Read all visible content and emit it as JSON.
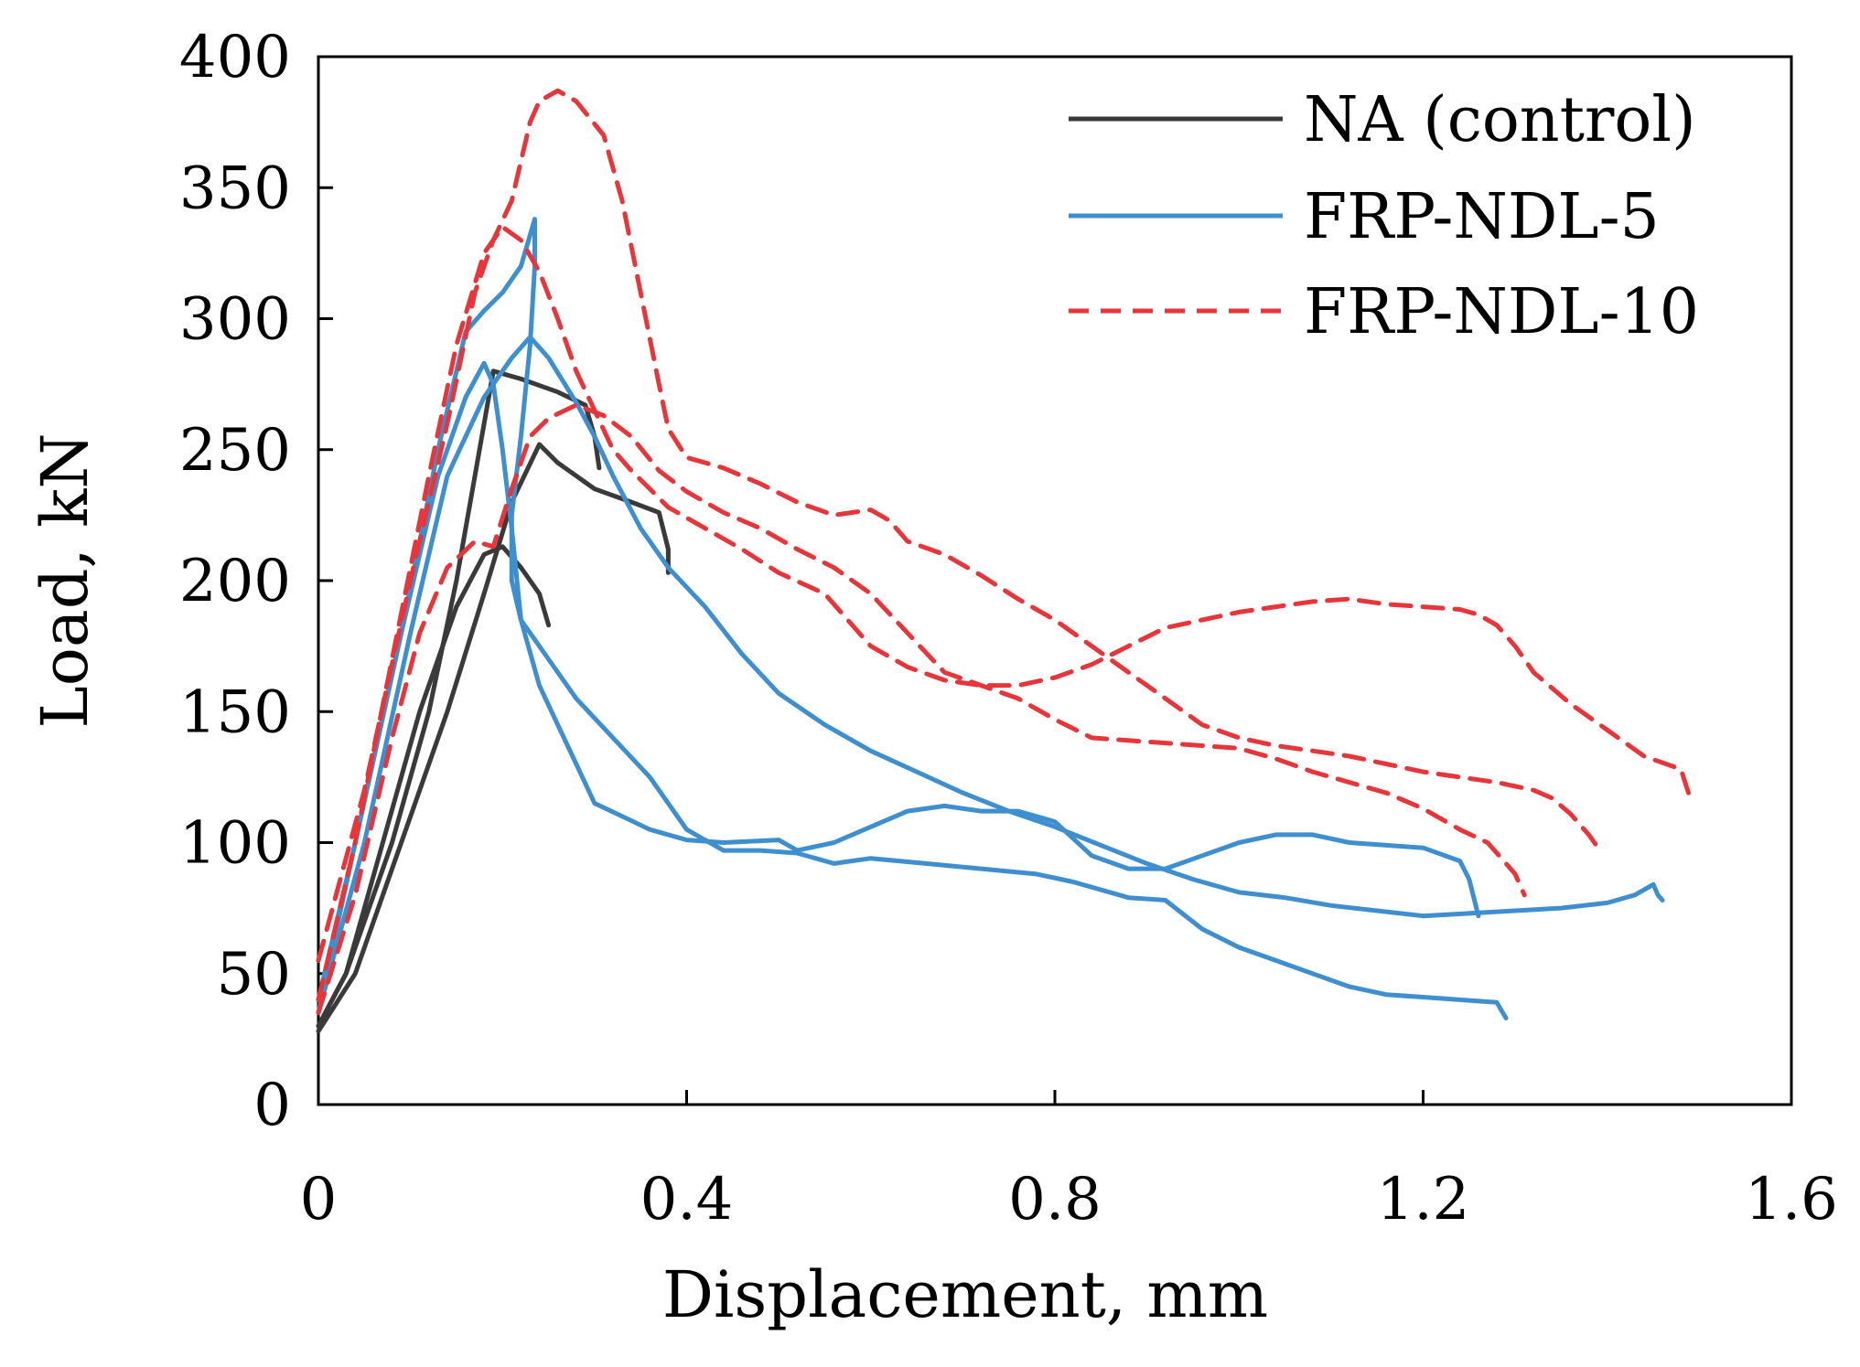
{
  "chart_data": {
    "type": "line",
    "title": "",
    "xlabel": "Displacement, mm",
    "ylabel": "Load, kN",
    "xlim": [
      0,
      1.6
    ],
    "ylim": [
      0,
      400
    ],
    "xticks": [
      0,
      0.4,
      0.8,
      1.2,
      1.6
    ],
    "xtick_labels": [
      "0",
      "0.4",
      "0.8",
      "1.2",
      "1.6"
    ],
    "yticks": [
      0,
      50,
      100,
      150,
      200,
      250,
      300,
      350,
      400
    ],
    "ytick_labels": [
      "0",
      "50",
      "100",
      "150",
      "200",
      "250",
      "300",
      "350",
      "400"
    ],
    "grid": false,
    "legend_position": "top-right",
    "legend": [
      {
        "name": "NA (control)",
        "color": "#3a3a3a",
        "dash": "solid"
      },
      {
        "name": "FRP-NDL-5",
        "color": "#3e8fd0",
        "dash": "solid"
      },
      {
        "name": "FRP-NDL-10",
        "color": "#e8353a",
        "dash": "dashed"
      }
    ],
    "series": [
      {
        "name": "NA (control)",
        "group": 0,
        "points": [
          [
            0,
            30
          ],
          [
            0.03,
            50
          ],
          [
            0.08,
            100
          ],
          [
            0.12,
            150
          ],
          [
            0.15,
            200
          ],
          [
            0.17,
            240
          ],
          [
            0.19,
            280
          ],
          [
            0.22,
            277
          ],
          [
            0.26,
            272
          ],
          [
            0.29,
            267
          ],
          [
            0.3,
            255
          ],
          [
            0.305,
            243
          ]
        ]
      },
      {
        "name": "NA (control)",
        "group": 0,
        "points": [
          [
            0,
            28
          ],
          [
            0.04,
            50
          ],
          [
            0.09,
            100
          ],
          [
            0.14,
            150
          ],
          [
            0.18,
            195
          ],
          [
            0.21,
            230
          ],
          [
            0.24,
            252
          ],
          [
            0.26,
            245
          ],
          [
            0.3,
            235
          ],
          [
            0.34,
            230
          ],
          [
            0.37,
            226
          ],
          [
            0.38,
            212
          ],
          [
            0.38,
            203
          ]
        ]
      },
      {
        "name": "NA (control)",
        "group": 0,
        "points": [
          [
            0,
            30
          ],
          [
            0.03,
            50
          ],
          [
            0.07,
            100
          ],
          [
            0.11,
            150
          ],
          [
            0.15,
            190
          ],
          [
            0.18,
            210
          ],
          [
            0.2,
            213
          ],
          [
            0.22,
            205
          ],
          [
            0.24,
            195
          ],
          [
            0.25,
            183
          ]
        ]
      },
      {
        "name": "FRP-NDL-5",
        "group": 1,
        "points": [
          [
            0,
            35
          ],
          [
            0.04,
            100
          ],
          [
            0.09,
            180
          ],
          [
            0.13,
            250
          ],
          [
            0.16,
            295
          ],
          [
            0.18,
            303
          ],
          [
            0.2,
            310
          ],
          [
            0.22,
            320
          ],
          [
            0.235,
            338
          ],
          [
            0.235,
            320
          ],
          [
            0.23,
            290
          ],
          [
            0.22,
            255
          ],
          [
            0.21,
            225
          ],
          [
            0.21,
            200
          ],
          [
            0.22,
            185
          ],
          [
            0.25,
            170
          ],
          [
            0.28,
            155
          ],
          [
            0.32,
            140
          ],
          [
            0.36,
            125
          ],
          [
            0.4,
            105
          ],
          [
            0.44,
            97
          ],
          [
            0.48,
            97
          ],
          [
            0.52,
            96
          ],
          [
            0.56,
            92
          ],
          [
            0.6,
            94
          ],
          [
            0.66,
            92
          ],
          [
            0.72,
            90
          ],
          [
            0.78,
            88
          ],
          [
            0.82,
            85
          ],
          [
            0.88,
            79
          ],
          [
            0.92,
            78
          ],
          [
            0.96,
            67
          ],
          [
            1.0,
            60
          ],
          [
            1.04,
            55
          ],
          [
            1.08,
            50
          ],
          [
            1.12,
            45
          ],
          [
            1.16,
            42
          ],
          [
            1.2,
            41
          ],
          [
            1.24,
            40
          ],
          [
            1.28,
            39
          ],
          [
            1.285,
            36
          ],
          [
            1.29,
            33
          ]
        ]
      },
      {
        "name": "FRP-NDL-5",
        "group": 1,
        "points": [
          [
            0,
            40
          ],
          [
            0.04,
            100
          ],
          [
            0.09,
            180
          ],
          [
            0.13,
            240
          ],
          [
            0.16,
            270
          ],
          [
            0.18,
            283
          ],
          [
            0.19,
            275
          ],
          [
            0.2,
            250
          ],
          [
            0.21,
            220
          ],
          [
            0.22,
            185
          ],
          [
            0.24,
            160
          ],
          [
            0.26,
            145
          ],
          [
            0.28,
            130
          ],
          [
            0.3,
            115
          ],
          [
            0.33,
            110
          ],
          [
            0.36,
            105
          ],
          [
            0.4,
            101
          ],
          [
            0.44,
            100
          ],
          [
            0.5,
            101
          ],
          [
            0.52,
            97
          ],
          [
            0.56,
            100
          ],
          [
            0.6,
            106
          ],
          [
            0.64,
            112
          ],
          [
            0.68,
            114
          ],
          [
            0.72,
            112
          ],
          [
            0.76,
            112
          ],
          [
            0.8,
            108
          ],
          [
            0.84,
            95
          ],
          [
            0.88,
            90
          ],
          [
            0.92,
            90
          ],
          [
            0.96,
            95
          ],
          [
            1.0,
            100
          ],
          [
            1.04,
            103
          ],
          [
            1.08,
            103
          ],
          [
            1.12,
            100
          ],
          [
            1.16,
            99
          ],
          [
            1.2,
            98
          ],
          [
            1.24,
            93
          ],
          [
            1.25,
            86
          ],
          [
            1.26,
            72
          ]
        ]
      },
      {
        "name": "FRP-NDL-5",
        "group": 1,
        "points": [
          [
            0,
            35
          ],
          [
            0.05,
            100
          ],
          [
            0.1,
            180
          ],
          [
            0.14,
            240
          ],
          [
            0.18,
            270
          ],
          [
            0.21,
            285
          ],
          [
            0.23,
            293
          ],
          [
            0.25,
            285
          ],
          [
            0.28,
            268
          ],
          [
            0.3,
            255
          ],
          [
            0.32,
            240
          ],
          [
            0.35,
            220
          ],
          [
            0.38,
            205
          ],
          [
            0.42,
            190
          ],
          [
            0.46,
            172
          ],
          [
            0.5,
            157
          ],
          [
            0.55,
            145
          ],
          [
            0.6,
            135
          ],
          [
            0.65,
            127
          ],
          [
            0.7,
            119
          ],
          [
            0.75,
            112
          ],
          [
            0.8,
            106
          ],
          [
            0.85,
            99
          ],
          [
            0.9,
            92
          ],
          [
            0.95,
            86
          ],
          [
            1.0,
            81
          ],
          [
            1.05,
            79
          ],
          [
            1.1,
            76
          ],
          [
            1.15,
            74
          ],
          [
            1.2,
            72
          ],
          [
            1.25,
            73
          ],
          [
            1.3,
            74
          ],
          [
            1.35,
            75
          ],
          [
            1.4,
            77
          ],
          [
            1.43,
            80
          ],
          [
            1.45,
            84
          ],
          [
            1.455,
            80
          ],
          [
            1.46,
            78
          ]
        ]
      },
      {
        "name": "FRP-NDL-10",
        "group": 2,
        "points": [
          [
            0,
            55
          ],
          [
            0.05,
            120
          ],
          [
            0.1,
            200
          ],
          [
            0.14,
            260
          ],
          [
            0.17,
            310
          ],
          [
            0.19,
            330
          ],
          [
            0.21,
            345
          ],
          [
            0.23,
            375
          ],
          [
            0.24,
            383
          ],
          [
            0.26,
            387
          ],
          [
            0.28,
            383
          ],
          [
            0.31,
            370
          ],
          [
            0.33,
            345
          ],
          [
            0.35,
            310
          ],
          [
            0.37,
            275
          ],
          [
            0.38,
            258
          ],
          [
            0.4,
            247
          ],
          [
            0.44,
            243
          ],
          [
            0.48,
            237
          ],
          [
            0.52,
            230
          ],
          [
            0.56,
            225
          ],
          [
            0.6,
            227
          ],
          [
            0.62,
            223
          ],
          [
            0.64,
            215
          ],
          [
            0.68,
            210
          ],
          [
            0.72,
            202
          ],
          [
            0.76,
            193
          ],
          [
            0.8,
            185
          ],
          [
            0.84,
            175
          ],
          [
            0.88,
            165
          ],
          [
            0.92,
            155
          ],
          [
            0.96,
            145
          ],
          [
            1.0,
            140
          ],
          [
            1.04,
            137
          ],
          [
            1.08,
            135
          ],
          [
            1.12,
            133
          ],
          [
            1.16,
            130
          ],
          [
            1.2,
            127
          ],
          [
            1.24,
            125
          ],
          [
            1.28,
            123
          ],
          [
            1.32,
            120
          ],
          [
            1.34,
            117
          ],
          [
            1.36,
            111
          ],
          [
            1.38,
            103
          ],
          [
            1.39,
            98
          ]
        ]
      },
      {
        "name": "FRP-NDL-10",
        "group": 2,
        "points": [
          [
            0,
            40
          ],
          [
            0.04,
            100
          ],
          [
            0.08,
            170
          ],
          [
            0.12,
            240
          ],
          [
            0.15,
            290
          ],
          [
            0.18,
            325
          ],
          [
            0.2,
            335
          ],
          [
            0.22,
            330
          ],
          [
            0.24,
            318
          ],
          [
            0.26,
            300
          ],
          [
            0.28,
            280
          ],
          [
            0.3,
            265
          ],
          [
            0.32,
            250
          ],
          [
            0.34,
            242
          ],
          [
            0.36,
            235
          ],
          [
            0.38,
            228
          ],
          [
            0.42,
            220
          ],
          [
            0.46,
            212
          ],
          [
            0.5,
            203
          ],
          [
            0.55,
            195
          ],
          [
            0.6,
            175
          ],
          [
            0.64,
            167
          ],
          [
            0.68,
            162
          ],
          [
            0.72,
            160
          ],
          [
            0.76,
            160
          ],
          [
            0.8,
            163
          ],
          [
            0.84,
            168
          ],
          [
            0.88,
            175
          ],
          [
            0.92,
            182
          ],
          [
            0.96,
            185
          ],
          [
            1.0,
            188
          ],
          [
            1.04,
            190
          ],
          [
            1.08,
            192
          ],
          [
            1.12,
            193
          ],
          [
            1.16,
            191
          ],
          [
            1.2,
            190
          ],
          [
            1.24,
            189
          ],
          [
            1.26,
            187
          ],
          [
            1.28,
            183
          ],
          [
            1.3,
            175
          ],
          [
            1.32,
            165
          ],
          [
            1.36,
            153
          ],
          [
            1.4,
            143
          ],
          [
            1.44,
            133
          ],
          [
            1.48,
            128
          ],
          [
            1.49,
            117
          ]
        ]
      },
      {
        "name": "FRP-NDL-10",
        "group": 2,
        "points": [
          [
            0,
            35
          ],
          [
            0.04,
            80
          ],
          [
            0.08,
            140
          ],
          [
            0.11,
            180
          ],
          [
            0.14,
            205
          ],
          [
            0.17,
            215
          ],
          [
            0.19,
            213
          ],
          [
            0.21,
            235
          ],
          [
            0.23,
            255
          ],
          [
            0.25,
            262
          ],
          [
            0.28,
            267
          ],
          [
            0.31,
            263
          ],
          [
            0.34,
            255
          ],
          [
            0.37,
            242
          ],
          [
            0.4,
            234
          ],
          [
            0.44,
            226
          ],
          [
            0.48,
            220
          ],
          [
            0.52,
            212
          ],
          [
            0.56,
            205
          ],
          [
            0.6,
            195
          ],
          [
            0.64,
            180
          ],
          [
            0.68,
            165
          ],
          [
            0.72,
            160
          ],
          [
            0.76,
            155
          ],
          [
            0.8,
            147
          ],
          [
            0.84,
            140
          ],
          [
            0.88,
            139
          ],
          [
            0.92,
            138
          ],
          [
            0.96,
            137
          ],
          [
            1.0,
            136
          ],
          [
            1.04,
            132
          ],
          [
            1.08,
            127
          ],
          [
            1.12,
            123
          ],
          [
            1.16,
            119
          ],
          [
            1.2,
            113
          ],
          [
            1.24,
            105
          ],
          [
            1.27,
            100
          ],
          [
            1.29,
            92
          ],
          [
            1.3,
            88
          ],
          [
            1.31,
            80
          ]
        ]
      }
    ]
  }
}
